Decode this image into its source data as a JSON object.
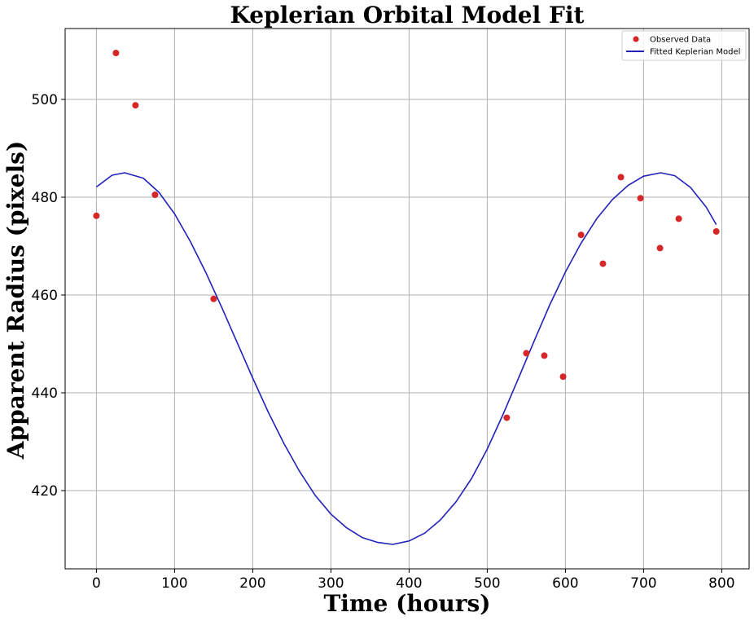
{
  "chart_data": {
    "type": "scatter",
    "title": "Keplerian Orbital Model Fit",
    "xlabel": "Time (hours)",
    "ylabel": "Apparent Radius (pixels)",
    "xlim": [
      -40,
      835
    ],
    "ylim": [
      404,
      514.5
    ],
    "xticks": [
      0,
      100,
      200,
      300,
      400,
      500,
      600,
      700,
      800
    ],
    "yticks": [
      420,
      440,
      460,
      480,
      500
    ],
    "grid": true,
    "legend_position": "top-right",
    "series": [
      {
        "name": "Observed Data",
        "kind": "scatter",
        "color": "#d62728",
        "x": [
          0,
          25,
          50,
          75,
          150,
          525,
          550,
          573,
          597,
          620,
          648,
          671,
          696,
          721,
          745,
          793
        ],
        "y": [
          476.2,
          509.5,
          498.8,
          480.5,
          459.2,
          434.9,
          448.1,
          447.6,
          443.3,
          472.3,
          466.4,
          484.1,
          479.8,
          469.6,
          475.6,
          473
        ]
      },
      {
        "name": "Fitted Keplerian Model",
        "kind": "line",
        "color": "#2222bb",
        "x": [
          0,
          20,
          36,
          60,
          80,
          100,
          120,
          140,
          160,
          180,
          200,
          220,
          240,
          260,
          280,
          300,
          320,
          340,
          360,
          379,
          400,
          420,
          440,
          460,
          480,
          500,
          520,
          540,
          560,
          580,
          600,
          620,
          640,
          660,
          680,
          700,
          722,
          740,
          760,
          780,
          793
        ],
        "y": [
          482.1,
          484.5,
          485,
          483.9,
          481,
          476.6,
          471,
          464.6,
          457.6,
          450.3,
          443,
          436,
          429.6,
          423.9,
          419,
          415.2,
          412.4,
          410.4,
          409.4,
          409,
          409.7,
          411.3,
          414,
          417.7,
          422.5,
          428.5,
          435.5,
          443,
          450.6,
          458,
          464.7,
          470.6,
          475.6,
          479.5,
          482.4,
          484.3,
          485,
          484.4,
          482,
          478,
          474.4
        ]
      }
    ]
  }
}
